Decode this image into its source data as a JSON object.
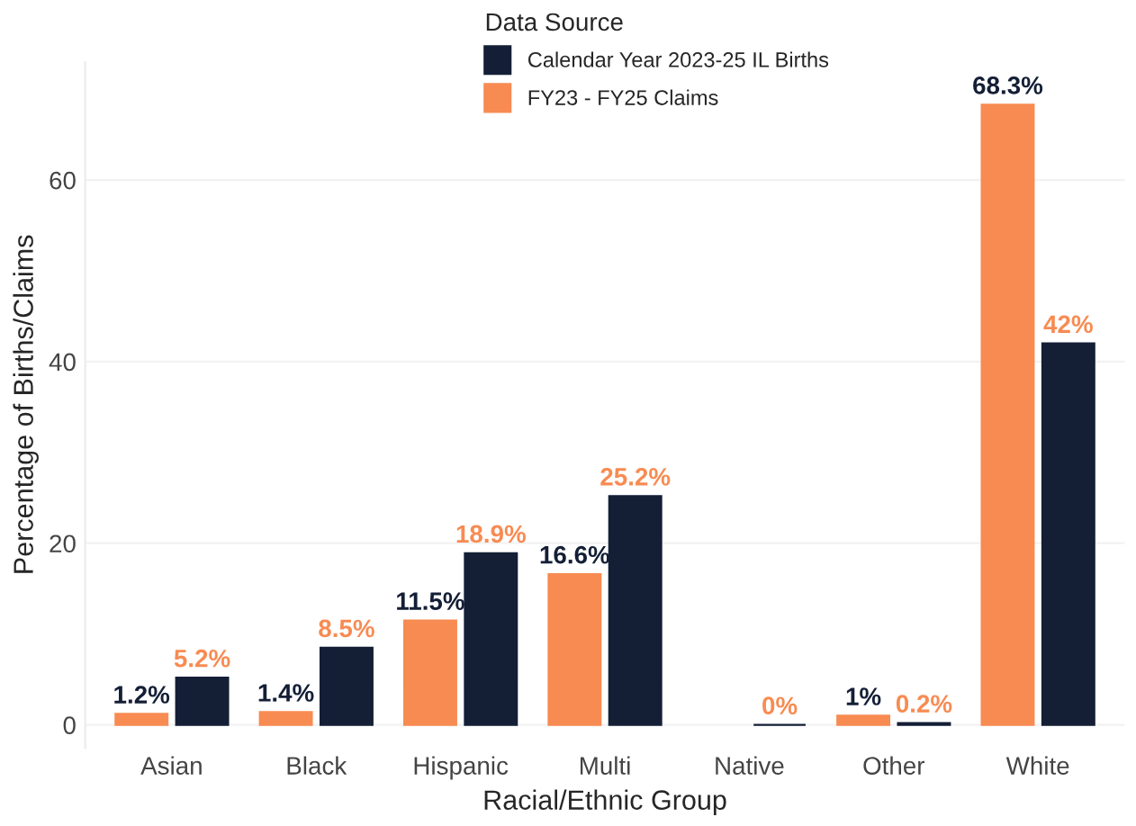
{
  "chart_data": {
    "type": "bar",
    "xlabel": "Racial/Ethnic Group",
    "ylabel": "Percentage of Births/Claims",
    "legend_title": "Data Source",
    "categories": [
      "Asian",
      "Black",
      "Hispanic",
      "Multi",
      "Native",
      "Other",
      "White"
    ],
    "series": [
      {
        "name": "Calendar Year 2023-25 IL Births",
        "color": "#141f36",
        "values": [
          5.2,
          8.5,
          18.9,
          25.2,
          0,
          0.2,
          42
        ],
        "value_labels": [
          "5.2%",
          "8.5%",
          "18.9%",
          "25.2%",
          "0%",
          "0.2%",
          "42%"
        ]
      },
      {
        "name": "FY23 - FY25 Claims",
        "color": "#f88b52",
        "values": [
          1.2,
          1.4,
          11.5,
          16.6,
          null,
          1,
          68.3
        ],
        "value_labels": [
          "1.2%",
          "1.4%",
          "11.5%",
          "16.6%",
          null,
          "1%",
          "68.3%"
        ]
      }
    ],
    "ylim": [
      -2.5,
      73
    ],
    "yticks": [
      0,
      20,
      40,
      60
    ],
    "grid": "y",
    "legend": "top"
  }
}
